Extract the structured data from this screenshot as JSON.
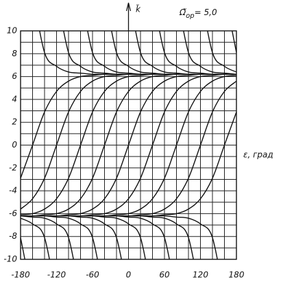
{
  "chart_data": {
    "type": "phase-portrait",
    "title_symbol": "Ω̃",
    "title_subscript": "ор",
    "title_value": "= 5,0",
    "xlabel": "ε, град",
    "ylabel": "k̃",
    "xlim": [
      -180,
      180
    ],
    "ylim": [
      -10,
      10
    ],
    "xticks": [
      -180,
      -120,
      -60,
      0,
      60,
      120,
      180
    ],
    "yticks": [
      -10,
      -8,
      -6,
      -4,
      -2,
      0,
      2,
      4,
      6,
      8,
      10
    ],
    "xgrid": [
      -180,
      -160,
      -140,
      -120,
      -100,
      -80,
      -60,
      -40,
      -20,
      0,
      20,
      40,
      60,
      80,
      100,
      120,
      140,
      160,
      180
    ],
    "ygrid": [
      -10,
      -9,
      -8,
      -7,
      -6,
      -5,
      -4,
      -3,
      -2,
      -1,
      0,
      1,
      2,
      3,
      4,
      5,
      6,
      7,
      8,
      9,
      10
    ],
    "color": "#111111",
    "x": [
      -180,
      -160,
      -140,
      -120,
      -100,
      -80,
      -60,
      -40,
      -20,
      0,
      20,
      40,
      60,
      80,
      100,
      120,
      140,
      160,
      180
    ],
    "series": [
      {
        "values": [
          -2.9,
          0,
          2.9,
          4.7,
          5.6,
          6.0,
          6.1,
          6.2,
          6.2,
          6.2,
          6.2,
          6.2,
          6.2,
          6.2,
          6.2,
          6.2,
          6.2,
          6.2,
          6.2
        ]
      },
      {
        "values": [
          -5.6,
          -4.7,
          -2.9,
          0,
          2.9,
          4.7,
          5.6,
          6.0,
          6.1,
          6.2,
          6.2,
          6.2,
          6.2,
          6.2,
          6.2,
          6.2,
          6.2,
          6.2,
          6.2
        ]
      },
      {
        "values": [
          -6.1,
          -6.0,
          -5.6,
          -4.7,
          -2.9,
          0,
          2.9,
          4.7,
          5.6,
          6.0,
          6.1,
          6.2,
          6.2,
          6.2,
          6.2,
          6.2,
          6.2,
          6.2,
          6.2
        ]
      },
      {
        "values": [
          -6.2,
          -6.2,
          -6.1,
          -6.0,
          -5.6,
          -4.7,
          -2.9,
          0,
          2.9,
          4.7,
          5.6,
          6.0,
          6.1,
          6.2,
          6.2,
          6.2,
          6.2,
          6.2,
          6.2
        ]
      },
      {
        "values": [
          -6.2,
          -6.2,
          -6.2,
          -6.2,
          -6.1,
          -6.0,
          -5.6,
          -4.7,
          -2.9,
          0,
          2.9,
          4.7,
          5.6,
          6.0,
          6.1,
          6.2,
          6.2,
          6.2,
          6.2
        ]
      },
      {
        "values": [
          -6.2,
          -6.2,
          -6.2,
          -6.2,
          -6.2,
          -6.2,
          -6.1,
          -6.0,
          -5.6,
          -4.7,
          -2.9,
          0,
          2.9,
          4.7,
          5.6,
          6.0,
          6.1,
          6.2,
          6.2
        ]
      },
      {
        "values": [
          -6.2,
          -6.2,
          -6.2,
          -6.2,
          -6.2,
          -6.2,
          -6.2,
          -6.2,
          -6.1,
          -6.0,
          -5.6,
          -4.7,
          -2.9,
          0,
          2.9,
          4.7,
          5.6,
          6.0,
          6.1
        ]
      },
      {
        "values": [
          -6.2,
          -6.2,
          -6.2,
          -6.2,
          -6.2,
          -6.2,
          -6.2,
          -6.2,
          -6.2,
          -6.2,
          -6.1,
          -6.0,
          -5.6,
          -4.7,
          -2.9,
          0,
          2.9,
          4.7,
          5.6
        ]
      },
      {
        "values": [
          -6.2,
          -6.2,
          -6.2,
          -6.2,
          -6.2,
          -6.2,
          -6.2,
          -6.2,
          -6.2,
          -6.2,
          -6.2,
          -6.2,
          -6.1,
          -6.0,
          -5.6,
          -4.7,
          -2.9,
          0,
          2.9
        ]
      },
      {
        "values": [
          null,
          13.4,
          8.1,
          6.9,
          6.4,
          6.3,
          6.2,
          6.2,
          6.2,
          6.2,
          6.2,
          6.2,
          6.2,
          6.2,
          6.2,
          6.2,
          6.2,
          6.2,
          6.2
        ]
      },
      {
        "values": [
          null,
          null,
          null,
          13.4,
          8.1,
          6.9,
          6.4,
          6.3,
          6.2,
          6.2,
          6.2,
          6.2,
          6.2,
          6.2,
          6.2,
          6.2,
          6.2,
          6.2,
          6.2
        ]
      },
      {
        "values": [
          null,
          null,
          null,
          null,
          null,
          13.4,
          8.1,
          6.9,
          6.4,
          6.3,
          6.2,
          6.2,
          6.2,
          6.2,
          6.2,
          6.2,
          6.2,
          6.2,
          6.2
        ]
      },
      {
        "values": [
          null,
          null,
          null,
          null,
          null,
          null,
          null,
          13.4,
          8.1,
          6.9,
          6.4,
          6.3,
          6.2,
          6.2,
          6.2,
          6.2,
          6.2,
          6.2,
          6.2
        ]
      },
      {
        "values": [
          null,
          null,
          null,
          null,
          null,
          null,
          null,
          null,
          null,
          13.4,
          8.1,
          6.9,
          6.4,
          6.3,
          6.2,
          6.2,
          6.2,
          6.2,
          6.2
        ]
      },
      {
        "values": [
          null,
          null,
          null,
          null,
          null,
          null,
          null,
          null,
          null,
          null,
          null,
          13.4,
          8.1,
          6.9,
          6.4,
          6.3,
          6.2,
          6.2,
          6.2
        ]
      },
      {
        "values": [
          null,
          null,
          null,
          null,
          null,
          null,
          null,
          null,
          null,
          null,
          null,
          null,
          null,
          13.4,
          8.1,
          6.9,
          6.4,
          6.3,
          6.2
        ]
      },
      {
        "values": [
          null,
          null,
          null,
          null,
          null,
          null,
          null,
          null,
          null,
          null,
          null,
          null,
          null,
          null,
          null,
          13.4,
          8.1,
          6.9,
          6.4
        ]
      },
      {
        "values": [
          null,
          null,
          null,
          null,
          null,
          null,
          null,
          null,
          null,
          null,
          null,
          null,
          null,
          null,
          null,
          null,
          null,
          13.4,
          8.1
        ]
      },
      {
        "values": [
          -8.1,
          -13.4,
          null,
          null,
          null,
          null,
          null,
          null,
          null,
          null,
          null,
          null,
          null,
          null,
          null,
          null,
          null,
          null,
          null
        ]
      },
      {
        "values": [
          -6.4,
          -6.9,
          -8.1,
          -13.4,
          null,
          null,
          null,
          null,
          null,
          null,
          null,
          null,
          null,
          null,
          null,
          null,
          null,
          null,
          null
        ]
      },
      {
        "values": [
          -6.2,
          -6.3,
          -6.4,
          -6.9,
          -8.1,
          -13.4,
          null,
          null,
          null,
          null,
          null,
          null,
          null,
          null,
          null,
          null,
          null,
          null,
          null
        ]
      },
      {
        "values": [
          -6.2,
          -6.2,
          -6.2,
          -6.3,
          -6.4,
          -6.9,
          -8.1,
          -13.4,
          null,
          null,
          null,
          null,
          null,
          null,
          null,
          null,
          null,
          null,
          null
        ]
      },
      {
        "values": [
          -6.2,
          -6.2,
          -6.2,
          -6.2,
          -6.2,
          -6.3,
          -6.4,
          -6.9,
          -8.1,
          -13.4,
          null,
          null,
          null,
          null,
          null,
          null,
          null,
          null,
          null
        ]
      },
      {
        "values": [
          -6.2,
          -6.2,
          -6.2,
          -6.2,
          -6.2,
          -6.2,
          -6.2,
          -6.3,
          -6.4,
          -6.9,
          -8.1,
          -13.4,
          null,
          null,
          null,
          null,
          null,
          null,
          null
        ]
      },
      {
        "values": [
          -6.2,
          -6.2,
          -6.2,
          -6.2,
          -6.2,
          -6.2,
          -6.2,
          -6.2,
          -6.2,
          -6.3,
          -6.4,
          -6.9,
          -8.1,
          -13.4,
          null,
          null,
          null,
          null,
          null
        ]
      },
      {
        "values": [
          -6.2,
          -6.2,
          -6.2,
          -6.2,
          -6.2,
          -6.2,
          -6.2,
          -6.2,
          -6.2,
          -6.2,
          -6.2,
          -6.3,
          -6.4,
          -6.9,
          -8.1,
          -13.4,
          null,
          null,
          null
        ]
      },
      {
        "values": [
          -6.2,
          -6.2,
          -6.2,
          -6.2,
          -6.2,
          -6.2,
          -6.2,
          -6.2,
          -6.2,
          -6.2,
          -6.2,
          -6.2,
          -6.2,
          -6.3,
          -6.4,
          -6.9,
          -8.1,
          -13.4,
          null
        ]
      }
    ]
  }
}
